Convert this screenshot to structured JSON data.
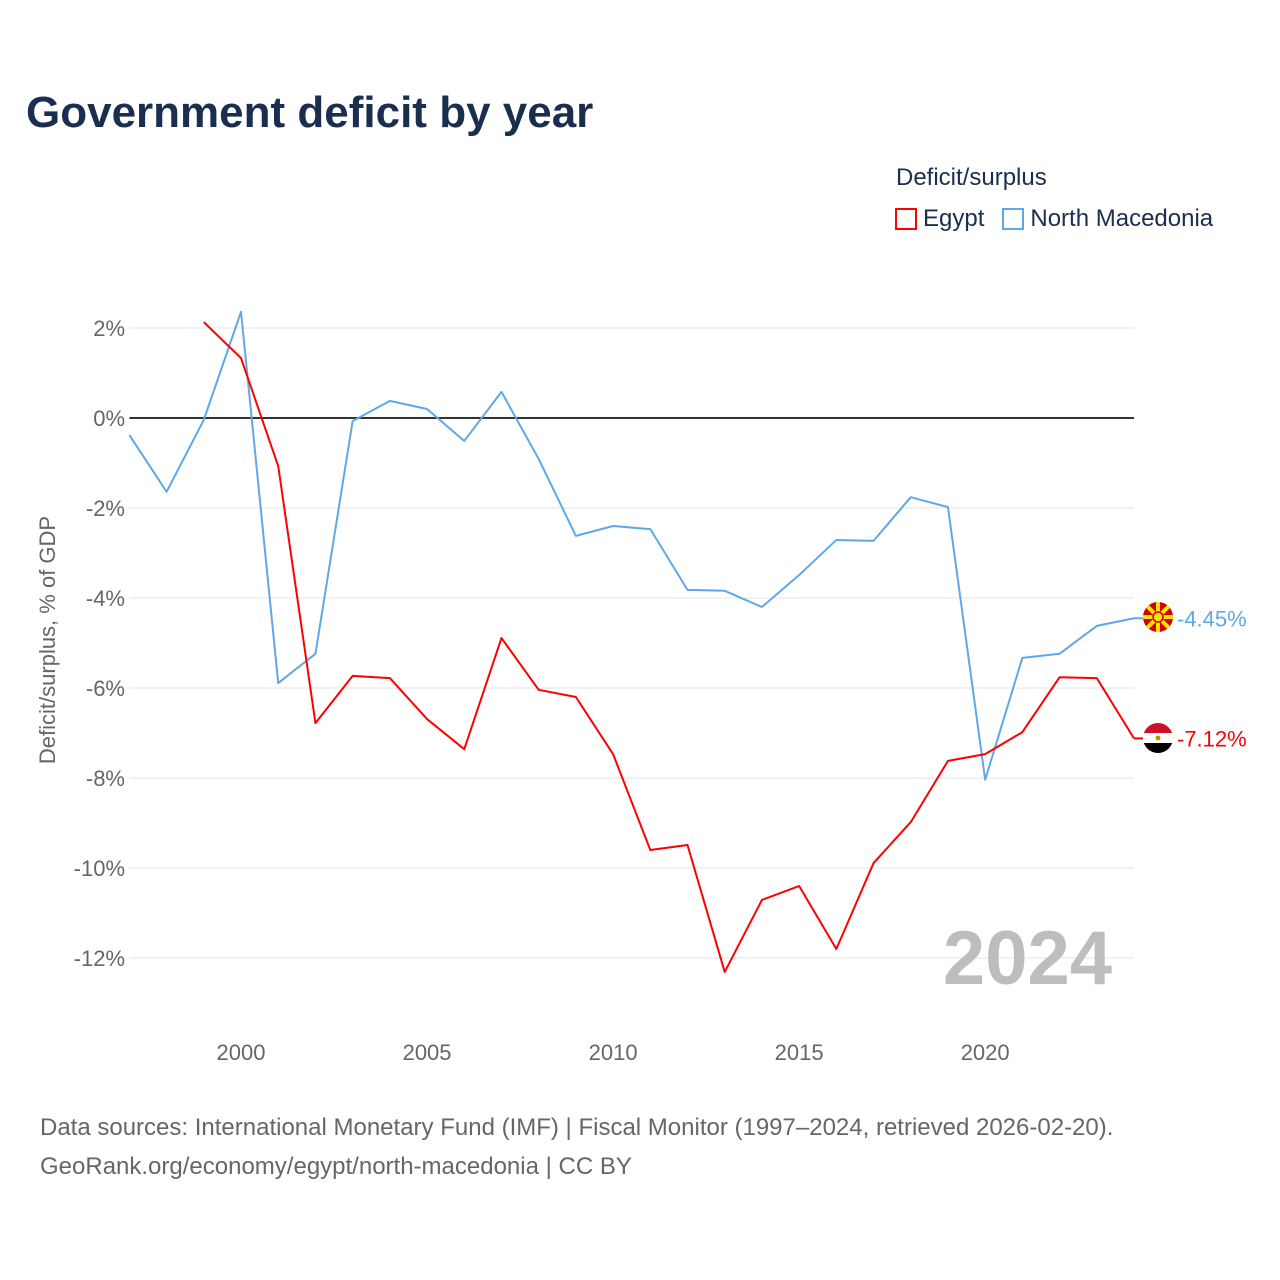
{
  "title": "Government deficit by year",
  "legend": {
    "title": "Deficit/surplus",
    "items": [
      {
        "label": "Egypt",
        "color": "#ff0000"
      },
      {
        "label": "North Macedonia",
        "color": "#5fa8e8"
      }
    ]
  },
  "watermark_year": "2024",
  "footer": {
    "line1": "Data sources: International Monetary Fund (IMF) | Fiscal Monitor (1997–2024, retrieved 2026-02-20).",
    "line2": "GeoRank.org/economy/egypt/north-macedonia | CC BY"
  },
  "chart_data": {
    "type": "line",
    "title": "Government deficit by year",
    "xlabel": "",
    "ylabel": "Deficit/surplus, % of GDP",
    "xlim": [
      1997,
      2024
    ],
    "ylim": [
      -14,
      3
    ],
    "xticks": [
      2000,
      2005,
      2010,
      2015,
      2020
    ],
    "yticks": [
      2,
      0,
      -2,
      -4,
      -6,
      -8,
      -10,
      -12
    ],
    "ytick_labels": [
      "2%",
      "0%",
      "-2%",
      "-4%",
      "-6%",
      "-8%",
      "-10%",
      "-12%"
    ],
    "series": [
      {
        "name": "North Macedonia",
        "color": "#5fa8e8",
        "end_label": "-4.45%",
        "x": [
          1997,
          1998,
          1999,
          2000,
          2001,
          2002,
          2003,
          2004,
          2005,
          2006,
          2007,
          2008,
          2009,
          2010,
          2011,
          2012,
          2013,
          2014,
          2015,
          2016,
          2017,
          2018,
          2019,
          2020,
          2021,
          2022,
          2023,
          2024
        ],
        "values": [
          -0.38,
          -1.64,
          -0.04,
          2.36,
          -5.89,
          -5.24,
          -0.07,
          0.38,
          0.2,
          -0.51,
          0.58,
          -0.91,
          -2.62,
          -2.4,
          -2.47,
          -3.82,
          -3.84,
          -4.2,
          -3.49,
          -2.71,
          -2.73,
          -1.76,
          -1.98,
          -8.04,
          -5.33,
          -5.24,
          -4.62,
          -4.45
        ]
      },
      {
        "name": "Egypt",
        "color": "#ff0000",
        "end_label": "-7.12%",
        "x": [
          1999,
          2000,
          2001,
          2002,
          2003,
          2004,
          2005,
          2006,
          2007,
          2008,
          2009,
          2010,
          2011,
          2012,
          2013,
          2014,
          2015,
          2016,
          2017,
          2018,
          2019,
          2020,
          2021,
          2022,
          2023,
          2024
        ],
        "values": [
          2.13,
          1.33,
          -1.07,
          -6.78,
          -5.73,
          -5.78,
          -6.69,
          -7.36,
          -4.89,
          -6.04,
          -6.2,
          -7.47,
          -9.6,
          -9.49,
          -12.31,
          -10.71,
          -10.4,
          -11.8,
          -9.89,
          -8.98,
          -7.62,
          -7.47,
          -6.98,
          -5.76,
          -5.78,
          -7.12
        ]
      }
    ]
  }
}
